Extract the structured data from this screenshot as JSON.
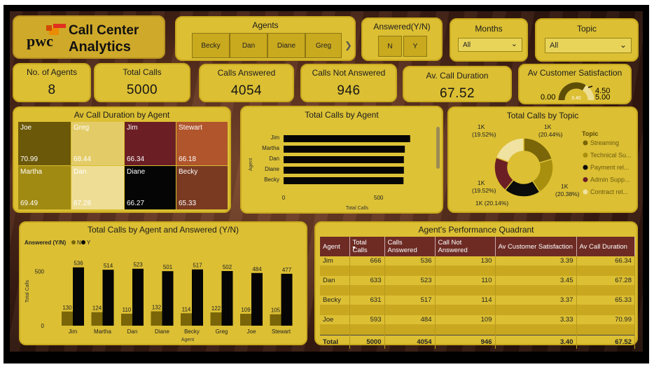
{
  "logo": {
    "brand": "pwc",
    "title_line1": "Call Center",
    "title_line2": "Analytics"
  },
  "slicers": {
    "agents": {
      "title": "Agents",
      "options": [
        "Becky",
        "Dan",
        "Diane",
        "Greg"
      ],
      "next_icon": "chevron-right-icon"
    },
    "answered": {
      "title": "Answered(Y/N)",
      "options": [
        "N",
        "Y"
      ]
    },
    "months": {
      "title": "Months",
      "value": "All"
    },
    "topic": {
      "title": "Topic",
      "value": "All"
    }
  },
  "kpis": {
    "agents": {
      "label": "No. of Agents",
      "value": "8"
    },
    "total_calls": {
      "label": "Total Calls",
      "value": "5000"
    },
    "answered": {
      "label": "Calls Answered",
      "value": "4054"
    },
    "not_answered": {
      "label": "Calls Not Answered",
      "value": "946"
    },
    "avg_duration": {
      "label": "Av. Call Duration",
      "value": "67.52"
    },
    "satisfaction": {
      "label": "Av Customer Satisfaction",
      "min": "0.00",
      "max": "5.00",
      "value": "3.40",
      "target": "4.50",
      "fraction": 0.68
    }
  },
  "treemap": {
    "title": "Av Call Duration by Agent",
    "cells": [
      {
        "name": "Joe",
        "value": "70.99",
        "color": "#6b5808",
        "text": "#ffffff"
      },
      {
        "name": "Greg",
        "value": "68.44",
        "color": "#e3cc68",
        "text": "#ffffff"
      },
      {
        "name": "Jim",
        "value": "66.34",
        "color": "#6b1f25",
        "text": "#ffffff"
      },
      {
        "name": "Stewart",
        "value": "66.18",
        "color": "#b0552c",
        "text": "#ffffff"
      },
      {
        "name": "Martha",
        "value": "69.49",
        "color": "#a18a12",
        "text": "#ffffff"
      },
      {
        "name": "Dan",
        "value": "67.28",
        "color": "#eedd94",
        "text": "#ffffff"
      },
      {
        "name": "Diane",
        "value": "66.27",
        "color": "#050505",
        "text": "#ffffff"
      },
      {
        "name": "Becky",
        "value": "65.33",
        "color": "#7a3a22",
        "text": "#ffffff"
      }
    ]
  },
  "chart_data": [
    {
      "type": "bar",
      "title": "Total Calls by Agent",
      "orientation": "horizontal",
      "categories": [
        "Jim",
        "Martha",
        "Dan",
        "Diane",
        "Becky"
      ],
      "values": [
        666,
        638,
        633,
        633,
        631
      ],
      "xlabel": "Total Calls",
      "ylabel": "Agent",
      "xticks": [
        "0",
        "500"
      ],
      "xlim": [
        0,
        700
      ]
    },
    {
      "type": "pie",
      "title": "Total Calls by Topic",
      "legend_title": "Topic",
      "labels": [
        "Streaming",
        "Technical Su...",
        "Payment rel...",
        "Admin Supp...",
        "Contract rel..."
      ],
      "values": [
        1022,
        1019,
        1007,
        976,
        976
      ],
      "slice_labels": [
        "1K\n(20.44%)",
        "1K\n(20.38%)",
        "1K (20.14%)",
        "1K\n(19.52%)",
        "1K\n(19.52%)"
      ],
      "colors": [
        "#7a6508",
        "#a88f0e",
        "#0b0b0b",
        "#6b1f25",
        "#f0e2a0"
      ]
    },
    {
      "type": "bar",
      "title": "Total Calls by Agent and Answered (Y/N)",
      "legend_title": "Answered (Y/N)",
      "categories": [
        "Jim",
        "Martha",
        "Dan",
        "Diane",
        "Becky",
        "Greg",
        "Joe",
        "Stewart"
      ],
      "series": [
        {
          "name": "N",
          "values": [
            130,
            124,
            110,
            132,
            114,
            122,
            109,
            105
          ],
          "color": "#7a6508"
        },
        {
          "name": "Y",
          "values": [
            536,
            514,
            523,
            501,
            517,
            502,
            484,
            477
          ],
          "color": "#050505"
        }
      ],
      "xlabel": "Agent",
      "ylabel": "Total Calls",
      "yticks": [
        "0",
        "500"
      ],
      "ylim": [
        0,
        560
      ]
    }
  ],
  "table": {
    "title": "Agent's Performance Quadrant",
    "headers": [
      "Agent",
      "Total Calls",
      "Calls Answered",
      "Call Not Answered",
      "Av Customer Satisfaction",
      "Av Call Duration"
    ],
    "rows": [
      [
        "Jim",
        "666",
        "536",
        "130",
        "3.39",
        "66.34"
      ],
      [
        "Dan",
        "633",
        "523",
        "110",
        "3.45",
        "67.28"
      ],
      [
        "Becky",
        "631",
        "517",
        "114",
        "3.37",
        "65.33"
      ],
      [
        "Joe",
        "593",
        "484",
        "109",
        "3.33",
        "70.99"
      ]
    ],
    "total": [
      "Total",
      "5000",
      "4054",
      "946",
      "3.40",
      "67.52"
    ]
  }
}
